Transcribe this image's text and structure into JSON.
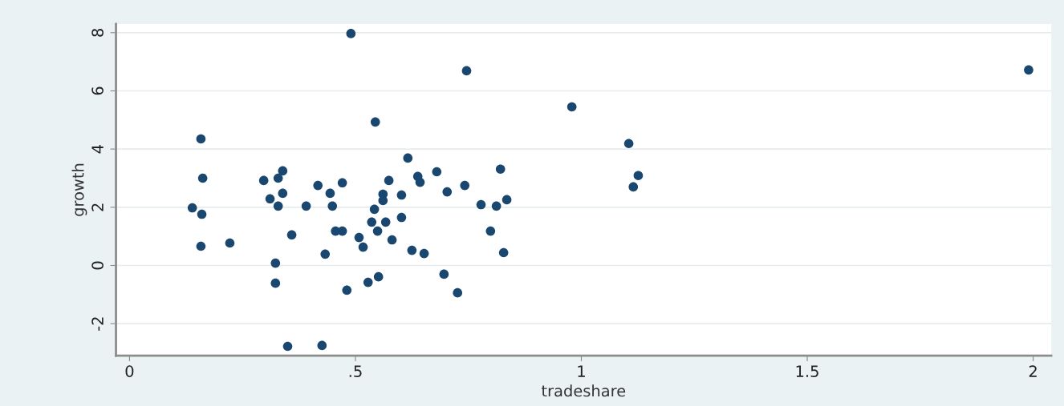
{
  "chart_data": {
    "type": "scatter",
    "xlabel": "tradeshare",
    "ylabel": "growth",
    "x": [
      0.49,
      0.746,
      1.99,
      0.979,
      0.544,
      0.158,
      1.105,
      0.616,
      0.339,
      0.821,
      0.68,
      1.126,
      1.115,
      0.162,
      0.297,
      0.329,
      0.417,
      0.471,
      0.574,
      0.638,
      0.643,
      0.742,
      0.703,
      0.339,
      0.444,
      0.561,
      0.602,
      0.311,
      0.561,
      0.835,
      0.812,
      0.778,
      0.139,
      0.16,
      0.329,
      0.391,
      0.449,
      0.542,
      0.536,
      0.567,
      0.602,
      0.456,
      0.471,
      0.549,
      0.799,
      0.508,
      0.581,
      0.359,
      0.222,
      0.158,
      0.517,
      0.433,
      0.625,
      0.652,
      0.828,
      0.323,
      0.323,
      0.551,
      0.528,
      0.696,
      0.481,
      0.726,
      0.35,
      0.426
    ],
    "values": [
      7.97,
      6.69,
      6.72,
      5.45,
      4.93,
      4.35,
      4.19,
      3.69,
      3.25,
      3.31,
      3.22,
      3.09,
      2.7,
      3.0,
      2.92,
      3.0,
      2.75,
      2.84,
      2.92,
      3.06,
      2.86,
      2.75,
      2.53,
      2.48,
      2.48,
      2.45,
      2.42,
      2.29,
      2.23,
      2.26,
      2.04,
      2.09,
      1.98,
      1.76,
      2.04,
      2.04,
      2.04,
      1.93,
      1.49,
      1.49,
      1.65,
      1.18,
      1.18,
      1.18,
      1.18,
      0.96,
      0.88,
      1.05,
      0.77,
      0.66,
      0.63,
      0.39,
      0.52,
      0.41,
      0.44,
      0.08,
      -0.61,
      -0.39,
      -0.58,
      -0.3,
      -0.85,
      -0.94,
      -2.78,
      -2.75
    ],
    "color": "#1a476f",
    "marker": "circle",
    "xlim": [
      -0.03,
      2.04
    ],
    "ylim": [
      -3.1,
      8.3
    ],
    "xticks": [
      0,
      {
        "value": 0.5,
        "label": ".5"
      },
      1,
      1.5,
      2
    ],
    "yticks": [
      -2,
      0,
      2,
      4,
      6,
      8
    ],
    "grid": "y",
    "legend": false
  }
}
